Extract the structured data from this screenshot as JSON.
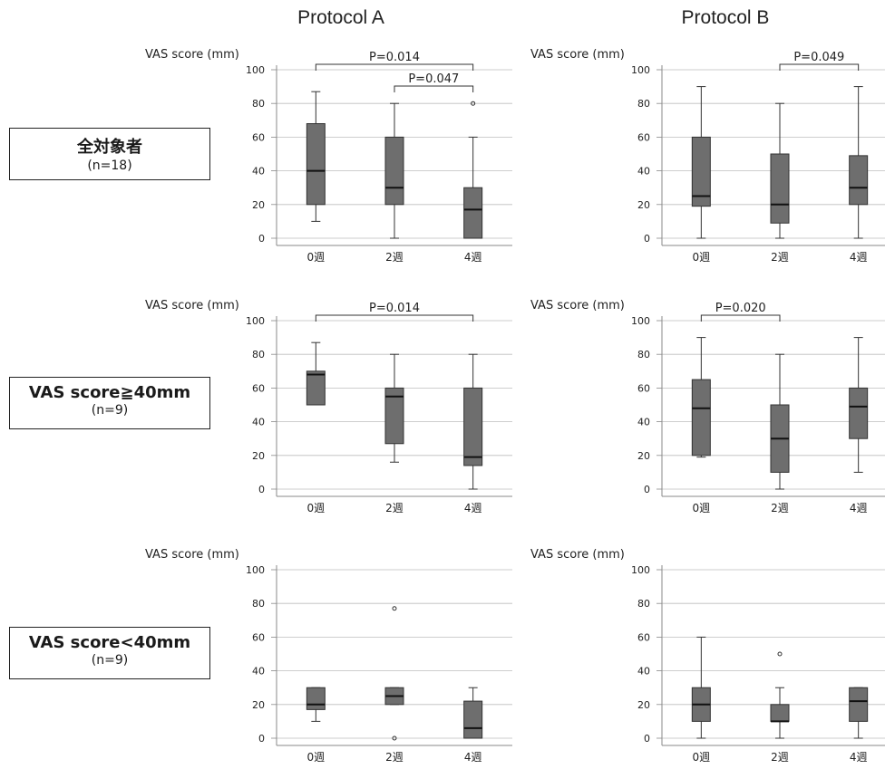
{
  "columns": [
    "Protocol A",
    "Protocol B"
  ],
  "groups": [
    {
      "label": "全対象者",
      "n": "(n=18)"
    },
    {
      "label": "VAS score≧40mm",
      "n": "(n=9)"
    },
    {
      "label": "VAS score<40mm",
      "n": "(n=9)"
    }
  ],
  "colors": {
    "box": "#6e6e6e",
    "median": "#111111",
    "axis": "#888888",
    "grid": "#bdbdbd"
  },
  "chart_data": [
    {
      "type": "box",
      "column": "Protocol A",
      "group": "全対象者",
      "ylabel": "VAS score (mm)",
      "ylim": [
        0,
        100
      ],
      "yticks": [
        0,
        20,
        40,
        60,
        80,
        100
      ],
      "categories": [
        "0週",
        "2週",
        "4週"
      ],
      "boxes": [
        {
          "min": 10,
          "q1": 20,
          "median": 40,
          "q3": 68,
          "max": 87,
          "outliers": []
        },
        {
          "min": 0,
          "q1": 20,
          "median": 30,
          "q3": 60,
          "max": 80,
          "outliers": []
        },
        {
          "min": 0,
          "q1": 0,
          "median": 17,
          "q3": 30,
          "max": 60,
          "outliers": [
            80
          ]
        }
      ],
      "brackets": [
        {
          "from": 0,
          "to": 2,
          "label": "P=0.014"
        },
        {
          "from": 1,
          "to": 2,
          "label": "P=0.047"
        }
      ]
    },
    {
      "type": "box",
      "column": "Protocol B",
      "group": "全対象者",
      "ylabel": "VAS score (mm)",
      "ylim": [
        0,
        100
      ],
      "yticks": [
        0,
        20,
        40,
        60,
        80,
        100
      ],
      "categories": [
        "0週",
        "2週",
        "4週"
      ],
      "boxes": [
        {
          "min": 0,
          "q1": 19,
          "median": 25,
          "q3": 60,
          "max": 90,
          "outliers": []
        },
        {
          "min": 0,
          "q1": 9,
          "median": 20,
          "q3": 50,
          "max": 80,
          "outliers": []
        },
        {
          "min": 0,
          "q1": 20,
          "median": 30,
          "q3": 49,
          "max": 90,
          "outliers": []
        }
      ],
      "brackets": [
        {
          "from": 1,
          "to": 2,
          "label": "P=0.049"
        }
      ]
    },
    {
      "type": "box",
      "column": "Protocol A",
      "group": "VAS score≧40mm",
      "ylabel": "VAS score (mm)",
      "ylim": [
        0,
        100
      ],
      "yticks": [
        0,
        20,
        40,
        60,
        80,
        100
      ],
      "categories": [
        "0週",
        "2週",
        "4週"
      ],
      "boxes": [
        {
          "min": 50,
          "q1": 50,
          "median": 68,
          "q3": 70,
          "max": 87,
          "outliers": []
        },
        {
          "min": 16,
          "q1": 27,
          "median": 55,
          "q3": 60,
          "max": 80,
          "outliers": []
        },
        {
          "min": 0,
          "q1": 14,
          "median": 19,
          "q3": 60,
          "max": 80,
          "outliers": []
        }
      ],
      "brackets": [
        {
          "from": 0,
          "to": 2,
          "label": "P=0.014"
        }
      ]
    },
    {
      "type": "box",
      "column": "Protocol B",
      "group": "VAS score≧40mm",
      "ylabel": "VAS score (mm)",
      "ylim": [
        0,
        100
      ],
      "yticks": [
        0,
        20,
        40,
        60,
        80,
        100
      ],
      "categories": [
        "0週",
        "2週",
        "4週"
      ],
      "boxes": [
        {
          "min": 19,
          "q1": 20,
          "median": 48,
          "q3": 65,
          "max": 90,
          "outliers": []
        },
        {
          "min": 0,
          "q1": 10,
          "median": 30,
          "q3": 50,
          "max": 80,
          "outliers": []
        },
        {
          "min": 10,
          "q1": 30,
          "median": 49,
          "q3": 60,
          "max": 90,
          "outliers": []
        }
      ],
      "brackets": [
        {
          "from": 0,
          "to": 1,
          "label": "P=0.020"
        }
      ]
    },
    {
      "type": "box",
      "column": "Protocol A",
      "group": "VAS score<40mm",
      "ylabel": "VAS score (mm)",
      "ylim": [
        0,
        100
      ],
      "yticks": [
        0,
        20,
        40,
        60,
        80,
        100
      ],
      "categories": [
        "0週",
        "2週",
        "4週"
      ],
      "boxes": [
        {
          "min": 10,
          "q1": 17,
          "median": 20,
          "q3": 30,
          "max": 30,
          "outliers": []
        },
        {
          "min": 20,
          "q1": 20,
          "median": 25,
          "q3": 30,
          "max": 30,
          "outliers": [
            77,
            0
          ]
        },
        {
          "min": 0,
          "q1": 0,
          "median": 6,
          "q3": 22,
          "max": 30,
          "outliers": []
        }
      ],
      "brackets": []
    },
    {
      "type": "box",
      "column": "Protocol B",
      "group": "VAS score<40mm",
      "ylabel": "VAS score (mm)",
      "ylim": [
        0,
        100
      ],
      "yticks": [
        0,
        20,
        40,
        60,
        80,
        100
      ],
      "categories": [
        "0週",
        "2週",
        "4週"
      ],
      "boxes": [
        {
          "min": 0,
          "q1": 10,
          "median": 20,
          "q3": 30,
          "max": 60,
          "outliers": []
        },
        {
          "min": 0,
          "q1": 10,
          "median": 10,
          "q3": 20,
          "max": 30,
          "outliers": [
            50
          ]
        },
        {
          "min": 0,
          "q1": 10,
          "median": 22,
          "q3": 30,
          "max": 30,
          "outliers": []
        }
      ],
      "brackets": []
    }
  ]
}
